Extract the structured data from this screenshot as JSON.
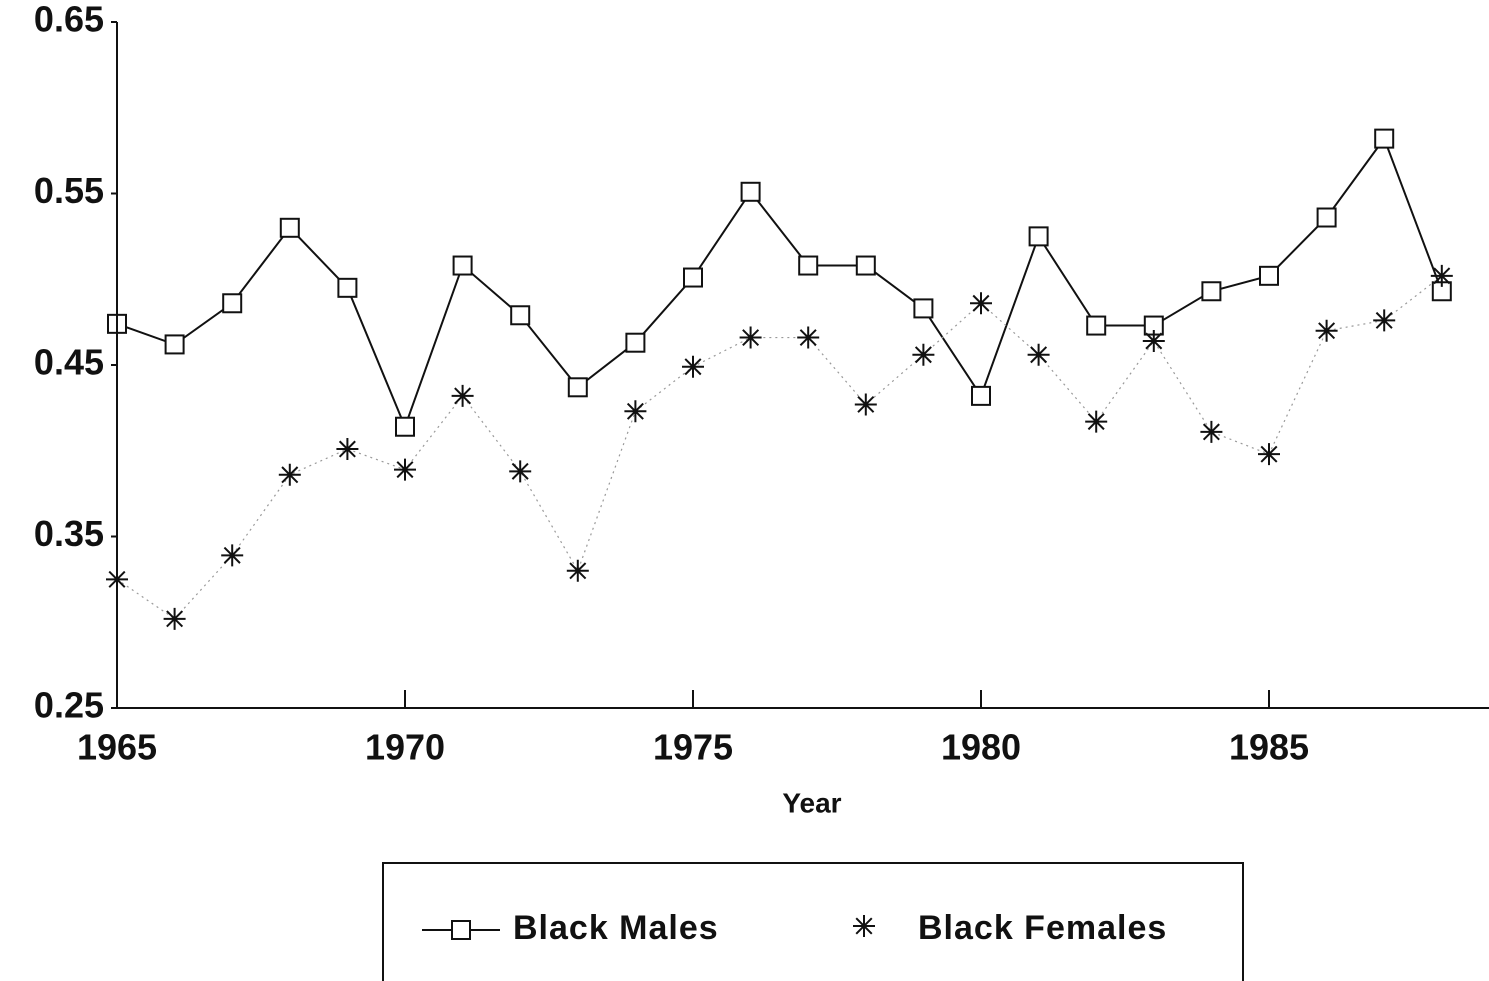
{
  "chart_data": {
    "type": "line",
    "x_label": "Year",
    "x": [
      1965,
      1966,
      1967,
      1968,
      1969,
      1970,
      1971,
      1972,
      1973,
      1974,
      1975,
      1976,
      1977,
      1978,
      1979,
      1980,
      1981,
      1982,
      1983,
      1984,
      1985,
      1986,
      1987,
      1988
    ],
    "series": [
      {
        "name": "Black Males",
        "color": "#111111",
        "marker": "square",
        "line": "solid",
        "values": [
          0.474,
          0.462,
          0.486,
          0.53,
          0.495,
          0.414,
          0.508,
          0.479,
          0.437,
          0.463,
          0.501,
          0.551,
          0.508,
          0.508,
          0.483,
          0.432,
          0.525,
          0.473,
          0.473,
          0.493,
          0.502,
          0.536,
          0.582,
          0.493
        ]
      },
      {
        "name": "Black Females",
        "color": "#111111",
        "marker": "star",
        "line": "dotted",
        "values": [
          0.325,
          0.302,
          0.339,
          0.386,
          0.401,
          0.389,
          0.432,
          0.388,
          0.33,
          0.423,
          0.449,
          0.466,
          0.466,
          0.427,
          0.456,
          0.486,
          0.456,
          0.417,
          0.464,
          0.411,
          0.398,
          0.47,
          0.476,
          0.502
        ]
      }
    ],
    "xlim": [
      1965,
      1989
    ],
    "xticks": [
      1965,
      1970,
      1975,
      1980,
      1985
    ],
    "ylim": [
      0.25,
      0.65
    ],
    "yticks": [
      0.25,
      0.35,
      0.45,
      0.55,
      0.65
    ],
    "grid": false
  }
}
